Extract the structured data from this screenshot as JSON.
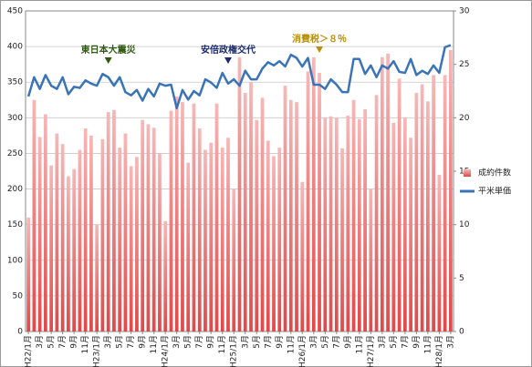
{
  "chart_data": {
    "type": "bar_line",
    "categories": [
      "H22/1月",
      null,
      "3月",
      null,
      "5月",
      null,
      "7月",
      null,
      "9月",
      null,
      "11月",
      null,
      "H23/1月",
      null,
      "3月",
      null,
      "5月",
      null,
      "7月",
      null,
      "9月",
      null,
      "11月",
      null,
      "H24/1月",
      null,
      "3月",
      null,
      "5月",
      null,
      "7月",
      null,
      "9月",
      null,
      "11月",
      null,
      "H25/1月",
      null,
      "3月",
      null,
      "5月",
      null,
      "7月",
      null,
      "9月",
      null,
      "11月",
      null,
      "H26/1月",
      null,
      "3月",
      null,
      "5月",
      null,
      "7月",
      null,
      "9月",
      null,
      "11月",
      null,
      "H27/1月",
      null,
      "3月",
      null,
      "5月",
      null,
      "7月",
      null,
      "9月",
      null,
      "11月",
      null,
      "H28/1月",
      null,
      "3月"
    ],
    "series": [
      {
        "name": "成約件数",
        "type": "bar",
        "color": "#e8595a",
        "values": [
          160,
          325,
          273,
          305,
          233,
          278,
          263,
          218,
          228,
          255,
          285,
          275,
          150,
          270,
          308,
          311,
          258,
          278,
          232,
          245,
          297,
          291,
          286,
          250,
          155,
          310,
          330,
          322,
          237,
          320,
          285,
          255,
          265,
          320,
          258,
          272,
          200,
          385,
          335,
          350,
          297,
          328,
          268,
          246,
          258,
          345,
          325,
          322,
          210,
          365,
          385,
          363,
          300,
          302,
          300,
          257,
          303,
          325,
          298,
          312,
          200,
          332,
          385,
          390,
          293,
          355,
          300,
          272,
          335,
          347,
          323,
          360,
          220,
          360,
          395
        ]
      },
      {
        "name": "平米単価",
        "type": "line",
        "axis": "y2",
        "color": "#3a74b8",
        "values": [
          22.0,
          23.8,
          22.7,
          24.0,
          23.0,
          22.7,
          23.8,
          22.2,
          22.9,
          22.8,
          23.5,
          23.2,
          23.0,
          24.1,
          23.8,
          23.0,
          23.8,
          22.4,
          22.1,
          22.6,
          21.6,
          22.7,
          22.0,
          23.2,
          23.0,
          23.1,
          20.9,
          22.6,
          21.7,
          22.5,
          22.1,
          23.6,
          23.3,
          22.8,
          24.2,
          23.2,
          23.6,
          23.0,
          24.4,
          23.6,
          23.6,
          24.6,
          25.2,
          24.9,
          25.3,
          24.8,
          25.9,
          25.6,
          24.8,
          25.6,
          23.1,
          23.1,
          22.7,
          23.6,
          23.1,
          22.4,
          22.4,
          25.5,
          25.5,
          24.1,
          24.9,
          23.8,
          24.9,
          24.6,
          25.3,
          24.3,
          24.2,
          25.5,
          24.0,
          24.4,
          24.1,
          24.9,
          24.2,
          26.6,
          26.8
        ]
      }
    ],
    "annotations": [
      {
        "text": "東日本大震災",
        "color": "#2f5a12"
      },
      {
        "text": "安倍政権交代",
        "color": "#1a2a6a"
      },
      {
        "text": "消費税＞８％",
        "color": "#b8900c"
      }
    ],
    "ylim": [
      0,
      450
    ],
    "yticks": [
      0,
      50,
      100,
      150,
      200,
      250,
      300,
      350,
      400,
      450
    ],
    "y2lim": [
      0,
      30
    ],
    "y2ticks": [
      0,
      5,
      10,
      15,
      20,
      25,
      30
    ],
    "grid": true,
    "legend": "right"
  }
}
